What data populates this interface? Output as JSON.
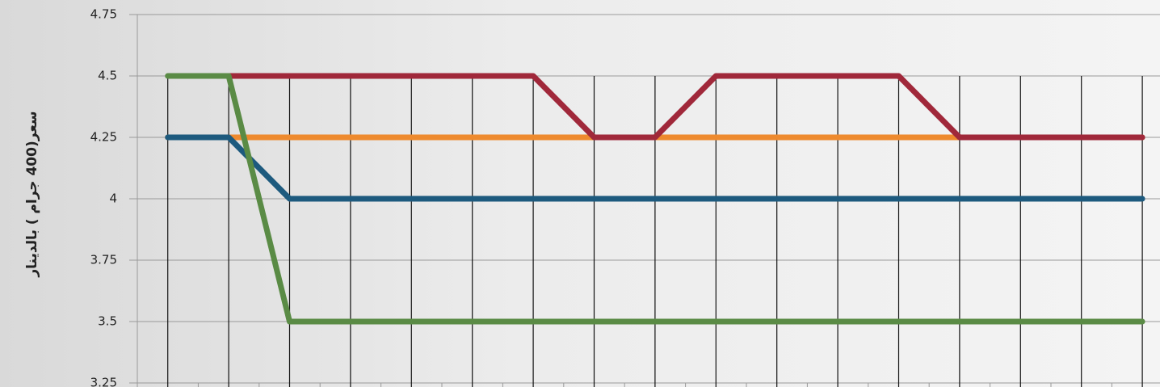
{
  "chart_data": {
    "type": "line",
    "ylabel": "سعر(400 جرام ) بالدينار",
    "categories": [
      null,
      null,
      null,
      null,
      null,
      null,
      null,
      null,
      null,
      null,
      null,
      null,
      null,
      null,
      null,
      null,
      null
    ],
    "series": [
      {
        "color": "#ee8a2e",
        "values": [
          4.25,
          4.25,
          4.25,
          4.25,
          4.25,
          4.25,
          4.25,
          4.25,
          4.25,
          4.25,
          4.25,
          4.25,
          4.25,
          4.25,
          4.25,
          4.25,
          4.25
        ]
      },
      {
        "color": "#1d5a7e",
        "values": [
          4.25,
          4.25,
          4,
          4,
          4,
          4,
          4,
          4,
          4,
          4,
          4,
          4,
          4,
          4,
          4,
          4,
          4
        ]
      },
      {
        "color": "#a0283a",
        "values": [
          null,
          4.5,
          4.5,
          4.5,
          4.5,
          4.5,
          4.5,
          4.25,
          4.25,
          4.5,
          4.5,
          4.5,
          4.5,
          4.25,
          4.25,
          4.25,
          4.25
        ]
      },
      {
        "color": "#5a8b45",
        "values": [
          4.5,
          4.5,
          3.5,
          3.5,
          3.5,
          3.5,
          3.5,
          3.5,
          3.5,
          3.5,
          3.5,
          3.5,
          3.5,
          3.5,
          3.5,
          3.5,
          3.5
        ]
      }
    ],
    "ylim": [
      3.25,
      4.75
    ],
    "yticks": [
      3.25,
      3.5,
      3.75,
      4,
      4.25,
      4.5,
      4.75
    ],
    "grid": true
  }
}
